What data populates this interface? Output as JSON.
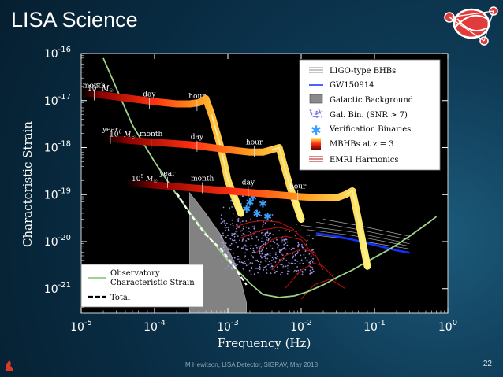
{
  "slide": {
    "title": "LISA Science",
    "footer": "M Hewitson, LISA Detector, SIGRAV, May 2018",
    "page_number": "22"
  },
  "colors": {
    "background": "#0b3550",
    "plot_bg": "#000000",
    "sensitivity": "#9fd38a",
    "galactic": "#8a8a8a",
    "mbhb_hot": "#ffe060",
    "mbhb_cold": "#8b0000",
    "gw150914": "#1030ff",
    "verification": "#3aa0ff",
    "galbin": "#b0a8ff",
    "emri": "#b01010",
    "ligo": "#d8d8d8"
  },
  "chart_data": {
    "type": "line",
    "xlabel": "Frequency (Hz)",
    "ylabel": "Characteristic Strain",
    "xscale": "log",
    "yscale": "log",
    "xlim": [
      1e-05,
      1
    ],
    "ylim": [
      3e-22,
      1e-16
    ],
    "x_tick_labels": [
      {
        "base": "10",
        "exp": "-5",
        "value": 1e-05
      },
      {
        "base": "10",
        "exp": "-4",
        "value": 0.0001
      },
      {
        "base": "10",
        "exp": "-3",
        "value": 0.001
      },
      {
        "base": "10",
        "exp": "-2",
        "value": 0.01
      },
      {
        "base": "10",
        "exp": "-1",
        "value": 0.1
      },
      {
        "base": "10",
        "exp": "0",
        "value": 1
      }
    ],
    "y_tick_labels": [
      {
        "base": "10",
        "exp": "-16",
        "value": 1e-16
      },
      {
        "base": "10",
        "exp": "-17",
        "value": 1e-17
      },
      {
        "base": "10",
        "exp": "-18",
        "value": 1e-18
      },
      {
        "base": "10",
        "exp": "-19",
        "value": 1e-19
      },
      {
        "base": "10",
        "exp": "-20",
        "value": 1e-20
      },
      {
        "base": "10",
        "exp": "-21",
        "value": 1e-21
      }
    ],
    "grid": false,
    "legend_top": {
      "placement": "top-right",
      "entries": [
        {
          "label": "LIGO-type BHBs",
          "marker": "lines-white"
        },
        {
          "label": "GW150914",
          "marker": "line-blue"
        },
        {
          "label": "Galactic Background",
          "marker": "box-gray"
        },
        {
          "label": "Gal. Bin. (SNR > 7)",
          "marker": "dots-purple"
        },
        {
          "label": "Verification Binaries",
          "marker": "star-blue"
        },
        {
          "label": "MBHBs at z = 3",
          "marker": "gradient-red-yellow"
        },
        {
          "label": "EMRI Harmonics",
          "marker": "lines-red"
        }
      ]
    },
    "legend_bottom": {
      "placement": "bottom-left",
      "entries": [
        {
          "label": "Observatory Characteristic Strain",
          "label_line1": "Observatory",
          "label_line2": "Characteristic Strain",
          "marker": "line-green"
        },
        {
          "label": "Total",
          "marker": "dashed-white"
        }
      ]
    },
    "sensitivity_curve": {
      "name": "Observatory Characteristic Strain",
      "x": [
        2e-05,
        5e-05,
        0.0001,
        0.0002,
        0.0005,
        0.001,
        0.002,
        0.003,
        0.005,
        0.008,
        0.012,
        0.02,
        0.03,
        0.05,
        0.08,
        0.1,
        0.15,
        0.2,
        0.3,
        0.5,
        0.7
      ],
      "y": [
        8e-17,
        3e-18,
        5e-19,
        1e-19,
        1.5e-20,
        4e-21,
        1.3e-21,
        7.5e-22,
        6.5e-22,
        7e-22,
        8.5e-22,
        1.2e-21,
        1.7e-21,
        2.5e-21,
        3.8e-21,
        4.6e-21,
        6.5e-21,
        8.5e-21,
        1.3e-20,
        2.3e-20,
        3.4e-20
      ]
    },
    "total_curve": {
      "name": "Total",
      "x": [
        0.0002,
        0.0003,
        0.0005,
        0.0008,
        0.001,
        0.0012,
        0.0015,
        0.0018
      ],
      "y": [
        1.1e-19,
        4e-20,
        1.4e-20,
        7e-21,
        4.5e-21,
        3e-21,
        1.8e-21,
        1.2e-21
      ]
    },
    "mbhb_tracks": [
      {
        "mass_label": "10^7 M_sun",
        "mass_base": "10",
        "mass_exp": "7",
        "x": [
          1e-05,
          3e-05,
          0.0001,
          0.0002,
          0.0003,
          0.0004,
          0.0005,
          0.0006,
          0.0008,
          0.001,
          0.0015
        ],
        "y": [
          1.5e-17,
          1.2e-17,
          9.5e-18,
          8.5e-18,
          8.5e-18,
          9e-18,
          1.1e-17,
          5e-18,
          1e-18,
          2e-19,
          4e-20
        ],
        "time_labels": [
          {
            "text": "month",
            "x": 1.5e-05,
            "y": 1.6e-17
          },
          {
            "text": "day",
            "x": 8.5e-05,
            "y": 1.05e-17
          },
          {
            "text": "hour",
            "x": 0.00038,
            "y": 9.5e-18
          }
        ]
      },
      {
        "mass_label": "10^6 M_sun",
        "mass_base": "10",
        "mass_exp": "6",
        "x": [
          2e-05,
          5e-05,
          0.0001,
          0.0003,
          0.001,
          0.002,
          0.003,
          0.004,
          0.005,
          0.007,
          0.01
        ],
        "y": [
          1.6e-18,
          1.4e-18,
          1.3e-18,
          1.15e-18,
          9e-19,
          8e-19,
          8e-19,
          9e-19,
          1e-18,
          1.5e-19,
          3e-20
        ],
        "time_labels": [
          {
            "text": "year",
            "x": 2.5e-05,
            "y": 1.9e-18
          },
          {
            "text": "month",
            "x": 9e-05,
            "y": 1.5e-18
          },
          {
            "text": "day",
            "x": 0.00038,
            "y": 1.3e-18
          },
          {
            "text": "hour",
            "x": 0.0023,
            "y": 1e-18
          }
        ]
      },
      {
        "mass_label": "10^5 M_sun",
        "mass_base": "10",
        "mass_exp": "5",
        "x": [
          4e-05,
          0.0001,
          0.0003,
          0.001,
          0.003,
          0.01,
          0.02,
          0.03,
          0.04,
          0.05,
          0.06,
          0.08
        ],
        "y": [
          1.8e-19,
          1.6e-19,
          1.4e-19,
          1.2e-19,
          1.05e-19,
          9e-20,
          8.5e-20,
          8.5e-20,
          1e-19,
          1.2e-19,
          3e-20,
          3e-21
        ],
        "time_labels": [
          {
            "text": "year",
            "x": 0.00015,
            "y": 2.2e-19
          },
          {
            "text": "month",
            "x": 0.00045,
            "y": 1.7e-19
          },
          {
            "text": "day",
            "x": 0.0019,
            "y": 1.4e-19
          },
          {
            "text": "hour",
            "x": 0.009,
            "y": 1.15e-19
          }
        ]
      }
    ],
    "gw150914": {
      "name": "GW150914",
      "x": [
        0.016,
        0.03,
        0.05,
        0.1,
        0.2,
        0.3
      ],
      "y": [
        1.5e-20,
        1.3e-20,
        1.1e-20,
        8.5e-21,
        6.5e-21,
        5.8e-21
      ]
    },
    "ligo_bhbs": [
      {
        "x": [
          0.01,
          0.05,
          0.3
        ],
        "y": [
          2.2e-20,
          1.6e-20,
          9e-21
        ]
      },
      {
        "x": [
          0.012,
          0.05,
          0.3
        ],
        "y": [
          1.8e-20,
          1.35e-20,
          8e-21
        ]
      },
      {
        "x": [
          0.014,
          0.05,
          0.3
        ],
        "y": [
          1.4e-20,
          1.1e-20,
          7e-21
        ]
      },
      {
        "x": [
          0.016,
          0.05,
          0.3
        ],
        "y": [
          2.6e-20,
          1.9e-20,
          1.1e-20
        ]
      },
      {
        "x": [
          0.02,
          0.06,
          0.3
        ],
        "y": [
          3e-20,
          2.2e-20,
          1.3e-20
        ]
      }
    ],
    "emri_harmonics": [
      {
        "x": [
          0.0012,
          0.002,
          0.003,
          0.005,
          0.008
        ],
        "y": [
          2e-20,
          2.6e-20,
          2.8e-20,
          2.6e-20,
          1.8e-20
        ]
      },
      {
        "x": [
          0.0015,
          0.003,
          0.005,
          0.008,
          0.012
        ],
        "y": [
          1.2e-20,
          1.8e-20,
          2e-20,
          1.7e-20,
          1e-20
        ]
      },
      {
        "x": [
          0.0025,
          0.004,
          0.006,
          0.01,
          0.015
        ],
        "y": [
          6e-21,
          1.1e-20,
          1.3e-20,
          1.1e-20,
          5e-21
        ]
      },
      {
        "x": [
          0.004,
          0.006,
          0.01,
          0.015,
          0.02
        ],
        "y": [
          2.5e-21,
          5e-21,
          7e-21,
          6e-21,
          2.5e-21
        ]
      },
      {
        "x": [
          0.006,
          0.01,
          0.015,
          0.02,
          0.03
        ],
        "y": [
          1e-21,
          2.5e-21,
          3.5e-21,
          3e-21,
          1.5e-21
        ]
      },
      {
        "x": [
          0.01,
          0.015,
          0.025,
          0.04
        ],
        "y": [
          6e-22,
          1.2e-21,
          1.6e-21,
          1e-21
        ]
      }
    ],
    "verification_binaries": {
      "name": "Verification Binaries",
      "x": [
        0.0012,
        0.0014,
        0.0016,
        0.0018,
        0.002,
        0.0022,
        0.0025,
        0.003,
        0.0035
      ],
      "y": [
        8e-20,
        6e-20,
        1.1e-19,
        5e-20,
        7e-20,
        9e-20,
        4e-20,
        6.5e-20,
        3.5e-20
      ]
    },
    "galactic_background": {
      "name": "Galactic Background",
      "x": [
        0.0003,
        0.0005,
        0.0008,
        0.0012,
        0.0015,
        0.0018
      ],
      "y": [
        1.1e-19,
        4e-20,
        1.4e-20,
        4e-21,
        1.5e-21,
        5e-22
      ]
    },
    "galactic_binaries_cloud": {
      "name": "Gal. Bin. (SNR > 7)",
      "x_range": [
        0.0008,
        0.015
      ],
      "y_range": [
        2e-21,
        2e-19
      ]
    }
  }
}
